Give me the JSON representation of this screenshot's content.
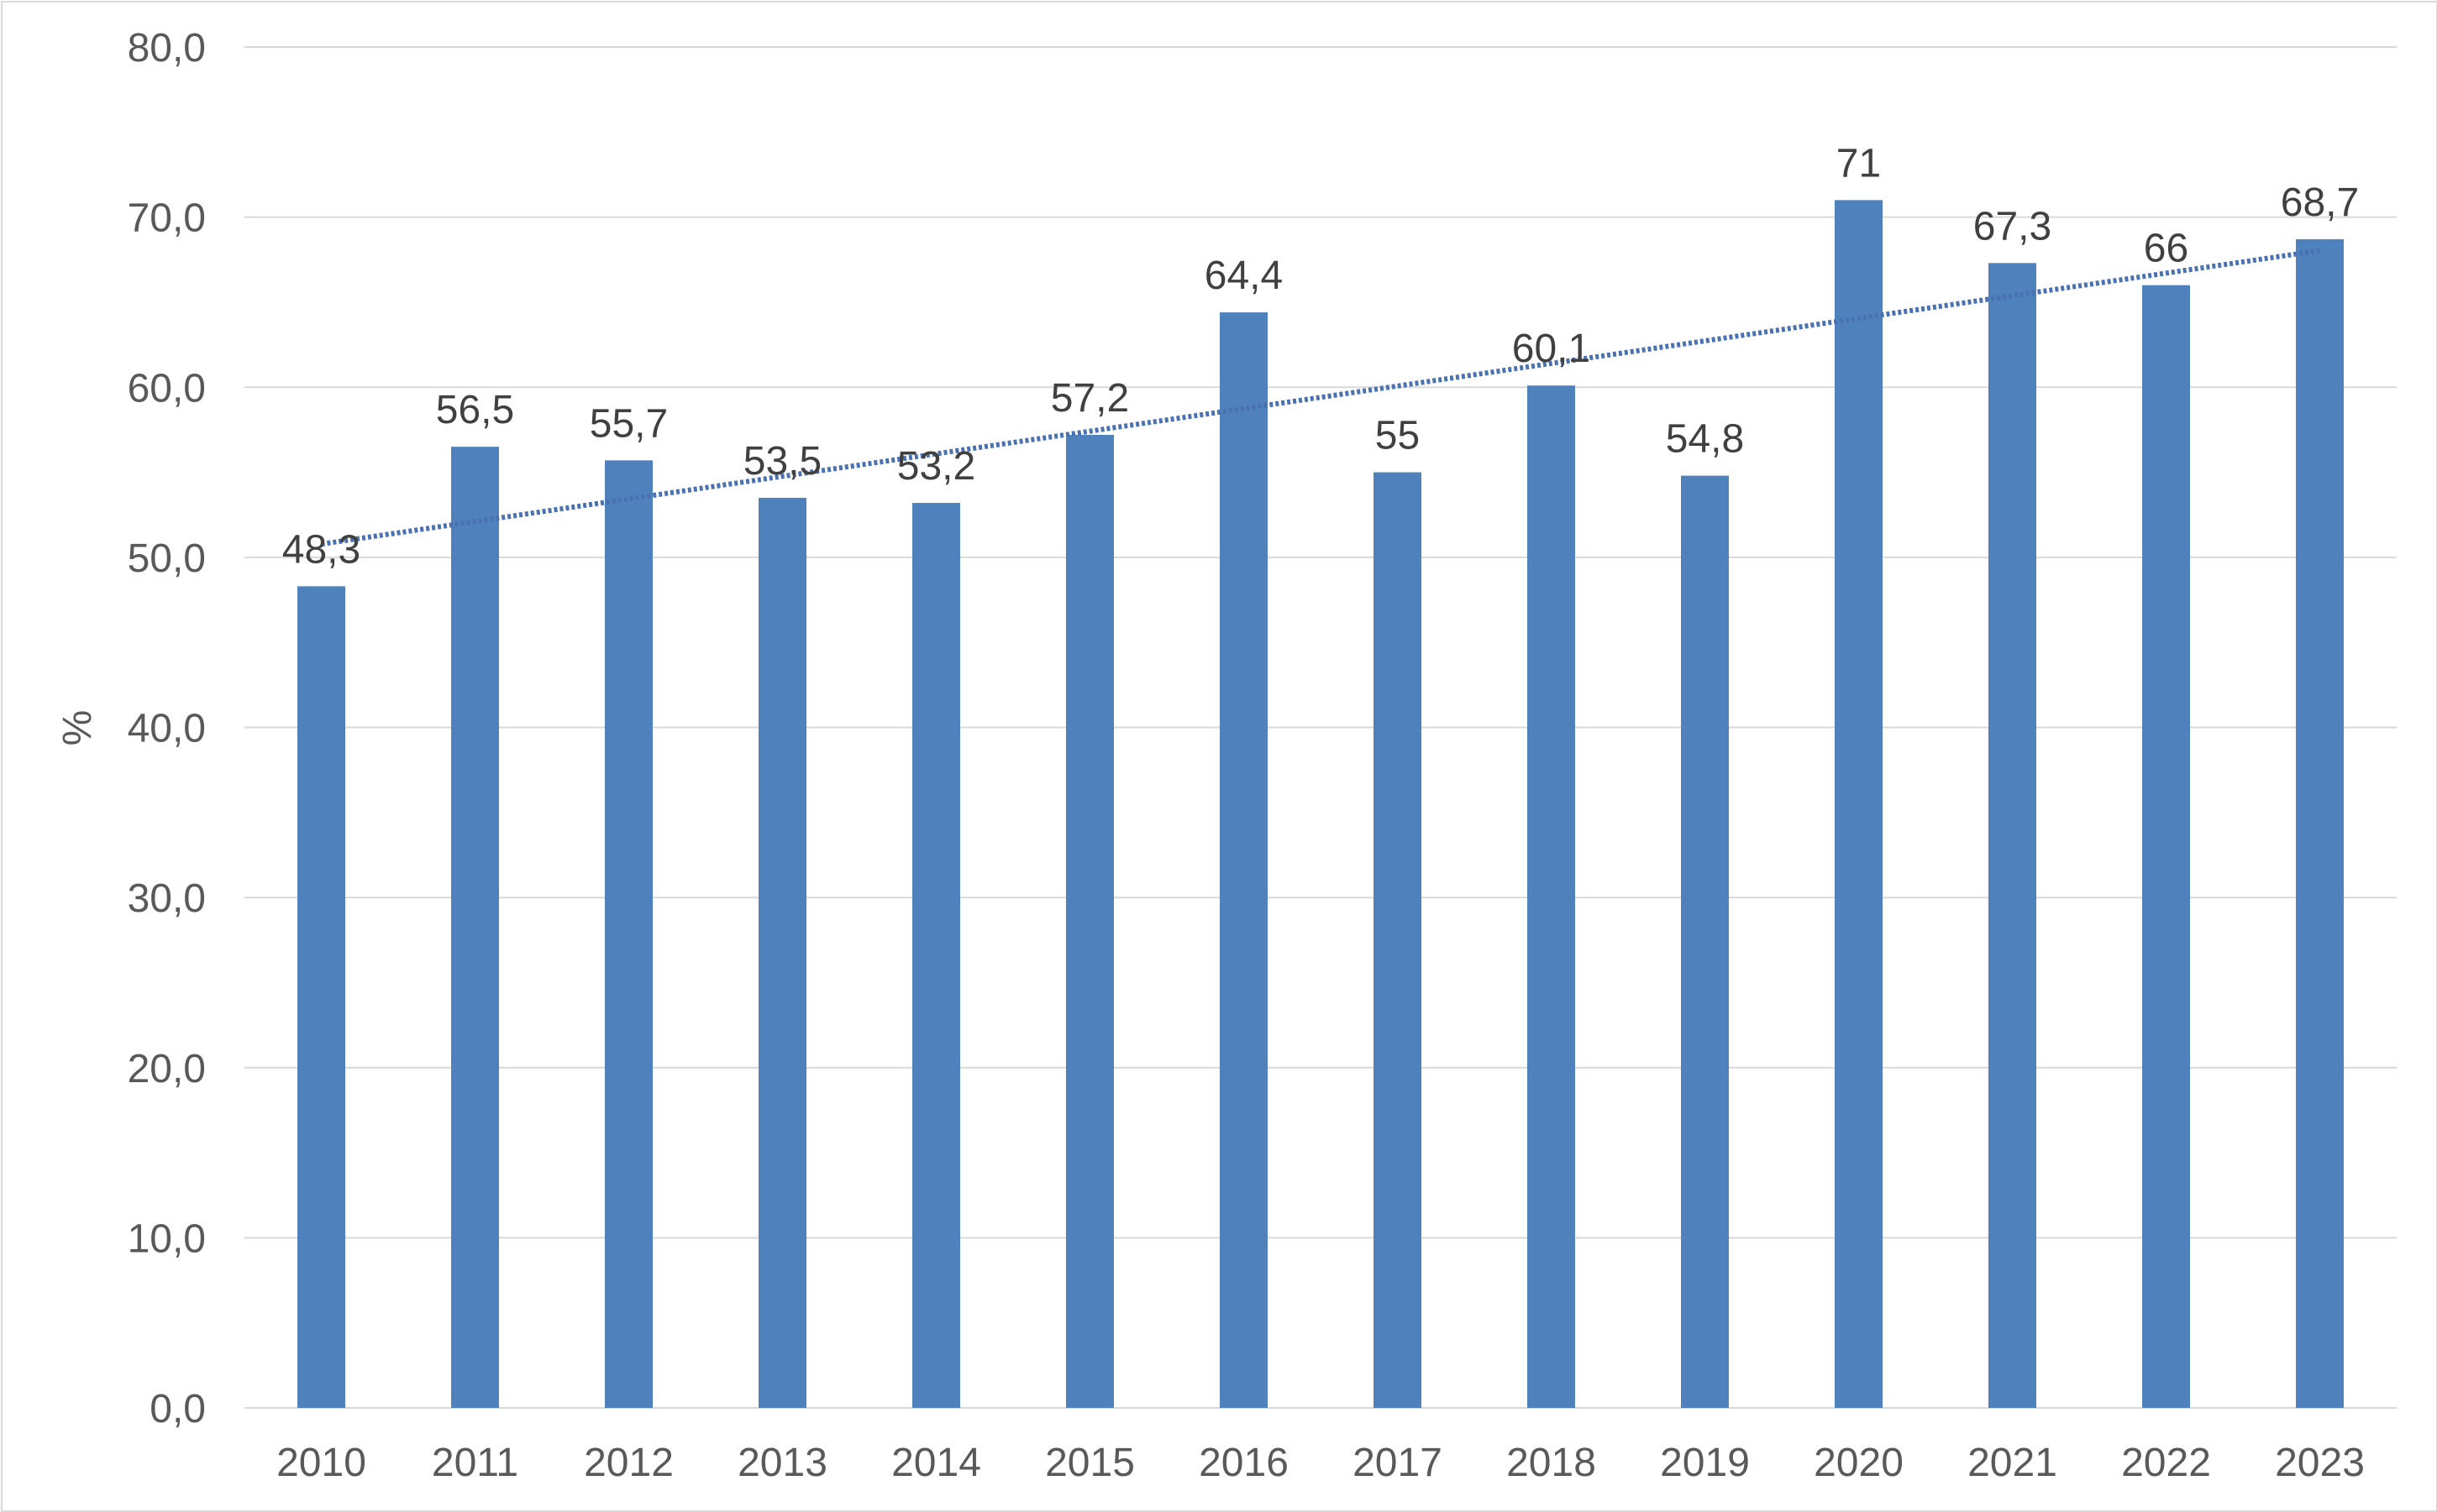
{
  "chart_data": {
    "type": "bar",
    "title": "",
    "xlabel": "",
    "ylabel": "%",
    "categories": [
      "2010",
      "2011",
      "2012",
      "2013",
      "2014",
      "2015",
      "2016",
      "2017",
      "2018",
      "2019",
      "2020",
      "2021",
      "2022",
      "2023"
    ],
    "values": [
      48.3,
      56.5,
      55.7,
      53.5,
      53.2,
      57.2,
      64.4,
      55,
      60.1,
      54.8,
      71,
      67.3,
      66,
      68.7
    ],
    "data_labels": [
      "48,3",
      "56,5",
      "55,7",
      "53,5",
      "53,2",
      "57,2",
      "64,4",
      "55",
      "60,1",
      "54,8",
      "71",
      "67,3",
      "66",
      "68,7"
    ],
    "ylim": [
      0,
      80
    ],
    "y_ticks": [
      0,
      10,
      20,
      30,
      40,
      50,
      60,
      70,
      80
    ],
    "y_tick_labels": [
      "0,0",
      "10,0",
      "20,0",
      "30,0",
      "40,0",
      "50,0",
      "60,0",
      "70,0",
      "80,0"
    ],
    "grid": true,
    "legend": "none",
    "trendline": {
      "type": "linear",
      "style": "dotted"
    },
    "colors": {
      "bar": "#4f81bd",
      "trendline": "#4a72b2",
      "grid": "#d9d9d9",
      "axis_text": "#595959",
      "label_text": "#404040"
    }
  }
}
